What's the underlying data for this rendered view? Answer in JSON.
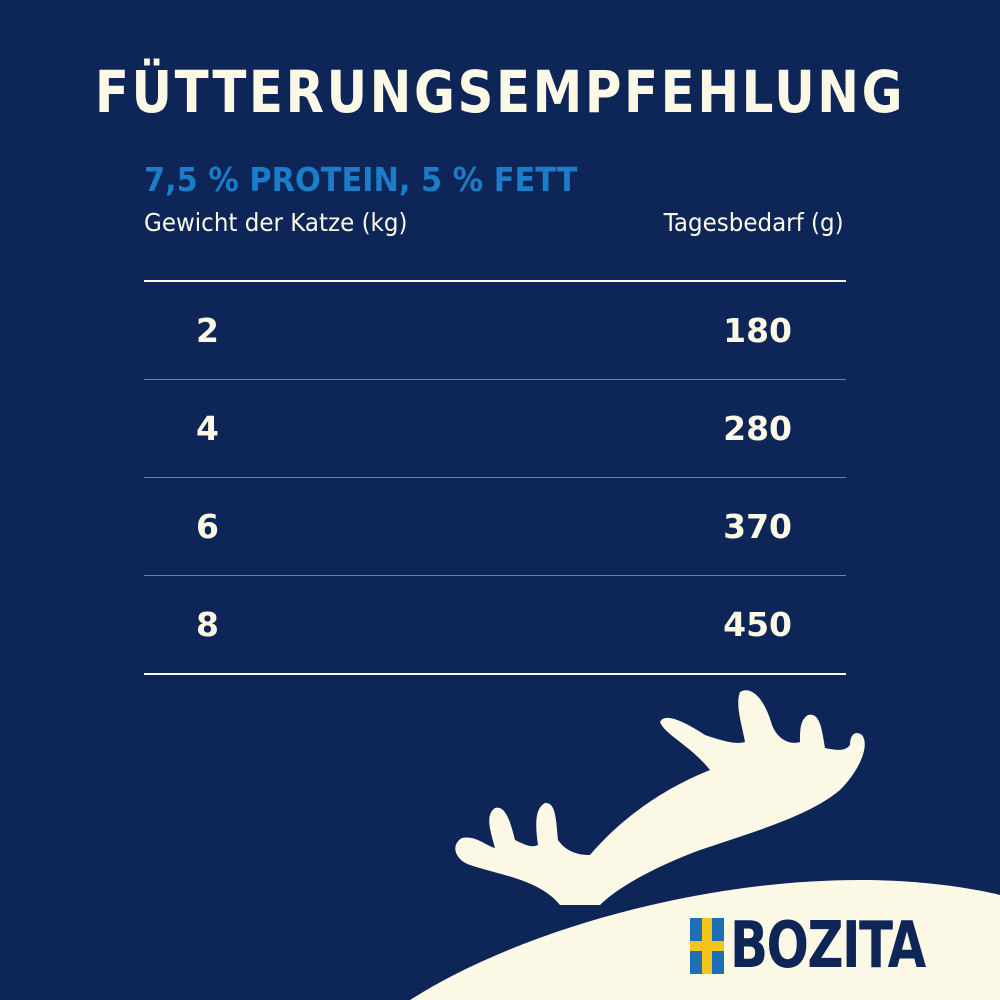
{
  "title": "FÜTTERUNGSEMPFEHLUNG",
  "subtitle": "7,5 % PROTEIN, 5 % FETT",
  "columns": {
    "weight": "Gewicht der Katze (kg)",
    "daily": "Tagesbedarf (g)"
  },
  "rows": [
    {
      "weight": "2",
      "daily": "180"
    },
    {
      "weight": "4",
      "daily": "280"
    },
    {
      "weight": "6",
      "daily": "370"
    },
    {
      "weight": "8",
      "daily": "450"
    }
  ],
  "brand": {
    "name": "BOZITA",
    "flag_icon": "swedish-flag-icon"
  },
  "colors": {
    "background": "#0e2557",
    "accent": "#1b7dc9",
    "cream": "#fbf8e6"
  }
}
